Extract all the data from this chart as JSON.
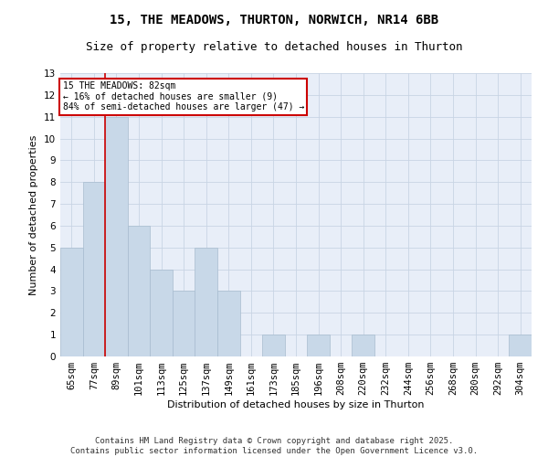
{
  "title1": "15, THE MEADOWS, THURTON, NORWICH, NR14 6BB",
  "title2": "Size of property relative to detached houses in Thurton",
  "xlabel": "Distribution of detached houses by size in Thurton",
  "ylabel": "Number of detached properties",
  "categories": [
    "65sqm",
    "77sqm",
    "89sqm",
    "101sqm",
    "113sqm",
    "125sqm",
    "137sqm",
    "149sqm",
    "161sqm",
    "173sqm",
    "185sqm",
    "196sqm",
    "208sqm",
    "220sqm",
    "232sqm",
    "244sqm",
    "256sqm",
    "268sqm",
    "280sqm",
    "292sqm",
    "304sqm"
  ],
  "values": [
    5,
    8,
    11,
    6,
    4,
    3,
    5,
    3,
    0,
    1,
    0,
    1,
    0,
    1,
    0,
    0,
    0,
    0,
    0,
    0,
    1
  ],
  "bar_color": "#c8d8e8",
  "bar_edge_color": "#a8bccf",
  "highlight_color": "#cc0000",
  "annotation_text": "15 THE MEADOWS: 82sqm\n← 16% of detached houses are smaller (9)\n84% of semi-detached houses are larger (47) →",
  "annotation_box_color": "#ffffff",
  "annotation_box_edge": "#cc0000",
  "ylim": [
    0,
    13
  ],
  "yticks": [
    0,
    1,
    2,
    3,
    4,
    5,
    6,
    7,
    8,
    9,
    10,
    11,
    12,
    13
  ],
  "grid_color": "#c8d4e4",
  "bg_color": "#e8eef8",
  "footer": "Contains HM Land Registry data © Crown copyright and database right 2025.\nContains public sector information licensed under the Open Government Licence v3.0.",
  "title1_fontsize": 10,
  "title2_fontsize": 9,
  "axis_label_fontsize": 8,
  "tick_fontsize": 7.5,
  "annotation_fontsize": 7,
  "footer_fontsize": 6.5
}
